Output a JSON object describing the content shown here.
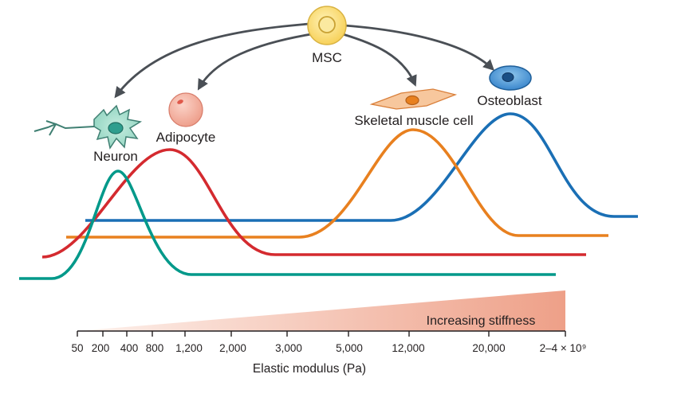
{
  "cells": {
    "msc": "MSC",
    "neuron": "Neuron",
    "adipocyte": "Adipocyte",
    "skeletal_muscle": "Skeletal muscle cell",
    "osteoblast": "Osteoblast"
  },
  "stiffness_label": "Increasing stiffness",
  "axis": {
    "label": "Elastic modulus (Pa)",
    "ticks": [
      "50",
      "200",
      "400",
      "800",
      "1,200",
      "2,000",
      "3,000",
      "5,000",
      "12,000",
      "20,000",
      "2–4 × 10⁹"
    ]
  },
  "colors": {
    "neuron_curve": "#00998a",
    "adipocyte_curve": "#d42a2f",
    "muscle_curve": "#e8801f",
    "osteoblast_curve": "#1a6fb5",
    "arrow": "#4a4f55",
    "stiffness_gradient_end": "#eea088"
  }
}
